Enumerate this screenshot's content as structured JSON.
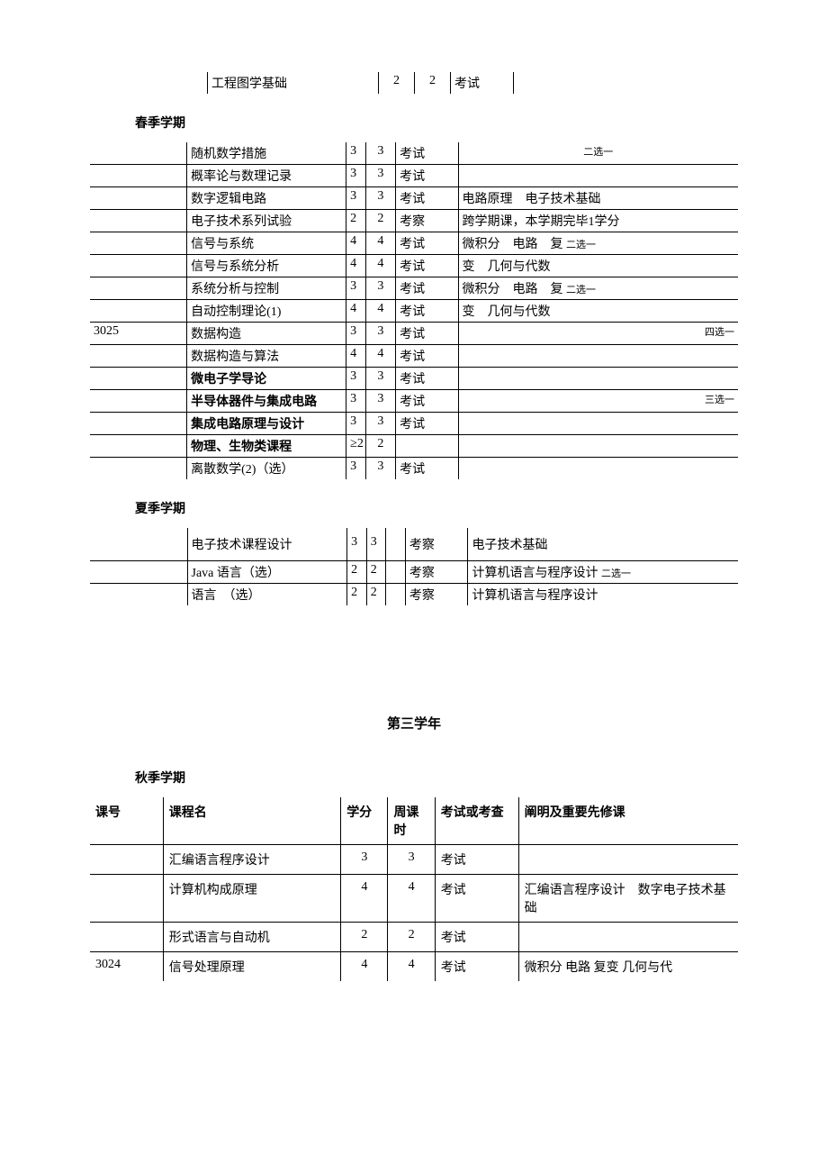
{
  "colors": {
    "text": "#000000",
    "background": "#ffffff",
    "border": "#000000"
  },
  "topRow": {
    "name": "工程图学基础",
    "credit": "2",
    "hours": "2",
    "exam": "考试"
  },
  "spring": {
    "heading": "春季学期",
    "rows": [
      {
        "code": "",
        "name": "随机数学措施",
        "credit": "3",
        "hours": "3",
        "exam": "考试",
        "note": "二选一",
        "note_small": true,
        "note_center": true
      },
      {
        "code": "",
        "name": "概率论与数理记录",
        "credit": "3",
        "hours": "3",
        "exam": "考试",
        "note": ""
      },
      {
        "code": "",
        "name": "数字逻辑电路",
        "credit": "3",
        "hours": "3",
        "exam": "考试",
        "note": "电路原理　电子技术基础"
      },
      {
        "code": "",
        "name": "电子技术系列试验",
        "credit": "2",
        "hours": "2",
        "exam": "考察",
        "note": "跨学期课，本学期完毕1学分"
      },
      {
        "code": "",
        "name": "信号与系统",
        "credit": "4",
        "hours": "4",
        "exam": "考试",
        "note": "微积分　电路　复",
        "note_extra": "二选一"
      },
      {
        "code": "",
        "name": "信号与系统分析",
        "credit": "4",
        "hours": "4",
        "exam": "考试",
        "note": "变　几何与代数"
      },
      {
        "code": "",
        "name": "系统分析与控制",
        "credit": "3",
        "hours": "3",
        "exam": "考试",
        "note": "微积分　电路　复",
        "note_extra": "二选一"
      },
      {
        "code": "",
        "name": "自动控制理论(1)",
        "credit": "4",
        "hours": "4",
        "exam": "考试",
        "note": "变　几何与代数"
      },
      {
        "code": "3025",
        "name": "数据构造",
        "credit": "3",
        "hours": "3",
        "exam": "考试",
        "note": "",
        "note_extra": "四选一",
        "note_right": true
      },
      {
        "code": "",
        "name": "数据构造与算法",
        "credit": "4",
        "hours": "4",
        "exam": "考试",
        "note": ""
      },
      {
        "code": "",
        "name": "微电子学导论",
        "bold": true,
        "credit": "3",
        "hours": "3",
        "exam": "考试",
        "note": ""
      },
      {
        "code": "",
        "name": "半导体器件与集成电路",
        "bold": true,
        "credit": "3",
        "hours": "3",
        "exam": "考试",
        "note": "",
        "note_extra": "三选一",
        "note_right": true
      },
      {
        "code": "",
        "name": "集成电路原理与设计",
        "bold": true,
        "credit": "3",
        "hours": "3",
        "exam": "考试",
        "note": ""
      },
      {
        "code": "",
        "name": "物理、生物类课程",
        "bold": true,
        "credit": "≥2",
        "hours": "2",
        "exam": "",
        "note": ""
      },
      {
        "code": "",
        "name": "离散数学(2)（选）",
        "credit": "3",
        "hours": "3",
        "exam": "考试",
        "note": ""
      }
    ]
  },
  "summer": {
    "heading": "夏季学期",
    "rows": [
      {
        "name": "电子技术课程设计",
        "credit": "3",
        "hours": "3",
        "exam": "考察",
        "note": "电子技术基础",
        "tall": true
      },
      {
        "name": "Java 语言（选）",
        "credit": "2",
        "hours": "2",
        "exam": "考察",
        "note": "计算机语言与程序设计",
        "note_extra": "二选一"
      },
      {
        "name": "语言　（选）",
        "credit": "2",
        "hours": "2",
        "exam": "考察",
        "note": "计算机语言与程序设计"
      }
    ]
  },
  "year3": {
    "heading": "第三学年",
    "fall": {
      "heading": "秋季学期",
      "headers": {
        "code": "课号",
        "name": "课程名",
        "credit": "学分",
        "hours": "周课时",
        "exam": "考试或考查",
        "note": "阐明及重要先修课"
      },
      "rows": [
        {
          "code": "",
          "name": "汇编语言程序设计",
          "credit": "3",
          "hours": "3",
          "exam": "考试",
          "note": ""
        },
        {
          "code": "",
          "name": "计算机构成原理",
          "credit": "4",
          "hours": "4",
          "exam": "考试",
          "note": "汇编语言程序设计　数字电子技术基础"
        },
        {
          "code": "",
          "name": "形式语言与自动机",
          "credit": "2",
          "hours": "2",
          "exam": "考试",
          "note": ""
        },
        {
          "code": "3024",
          "name": "信号处理原理",
          "credit": "4",
          "hours": "4",
          "exam": "考试",
          "note": "微积分 电路 复变 几何与代"
        }
      ]
    }
  }
}
